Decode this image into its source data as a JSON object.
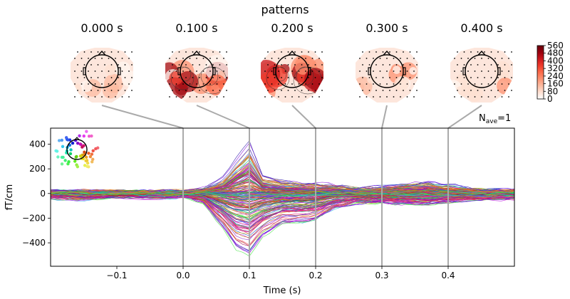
{
  "figure": {
    "title": "patterns",
    "nave_label": "N",
    "nave_sub": "ave",
    "nave_value": "=1"
  },
  "topomaps": [
    {
      "time_label": "0.000 s",
      "intensity": 0.25
    },
    {
      "time_label": "0.100 s",
      "intensity": 0.85
    },
    {
      "time_label": "0.200 s",
      "intensity": 0.95
    },
    {
      "time_label": "0.300 s",
      "intensity": 0.3
    },
    {
      "time_label": "0.400 s",
      "intensity": 0.22
    }
  ],
  "colorbar": {
    "ticks": [
      "560",
      "480",
      "400",
      "320",
      "240",
      "160",
      "80",
      "0"
    ],
    "colors": [
      "#ffffff",
      "#fee0d2",
      "#fcbba1",
      "#fc9272",
      "#fb6a4a",
      "#ef3b2c",
      "#cb181d",
      "#99000d",
      "#67000d"
    ]
  },
  "chart_data": {
    "type": "line",
    "title": "patterns",
    "xlabel": "Time (s)",
    "ylabel": "fT/cm",
    "xlim": [
      -0.2,
      0.5
    ],
    "ylim": [
      -590,
      530
    ],
    "x_ticks": [
      -0.1,
      0.0,
      0.1,
      0.2,
      0.3,
      0.4
    ],
    "x_tick_labels": [
      "−0.1",
      "0.0",
      "0.1",
      "0.2",
      "0.3",
      "0.4"
    ],
    "y_ticks": [
      400,
      200,
      0,
      -200,
      -400
    ],
    "y_tick_labels": [
      "400",
      "200",
      "0",
      "−200",
      "−400"
    ],
    "marker_times": [
      0.0,
      0.1,
      0.2,
      0.3,
      0.4
    ],
    "n_channels": 204,
    "envelope": {
      "t": [
        -0.2,
        -0.15,
        -0.1,
        -0.05,
        0.0,
        0.03,
        0.06,
        0.08,
        0.1,
        0.12,
        0.15,
        0.18,
        0.2,
        0.23,
        0.26,
        0.3,
        0.33,
        0.37,
        0.4,
        0.45,
        0.5
      ],
      "max": [
        30,
        30,
        25,
        25,
        25,
        45,
        150,
        330,
        500,
        180,
        120,
        100,
        100,
        80,
        60,
        70,
        90,
        110,
        80,
        45,
        35
      ],
      "min": [
        -40,
        -55,
        -35,
        -35,
        -30,
        -80,
        -300,
        -480,
        -540,
        -380,
        -260,
        -260,
        -230,
        -130,
        -90,
        -80,
        -90,
        -100,
        -80,
        -50,
        -45
      ]
    },
    "grid": false,
    "legend": "sensor-position inset, top-left"
  }
}
